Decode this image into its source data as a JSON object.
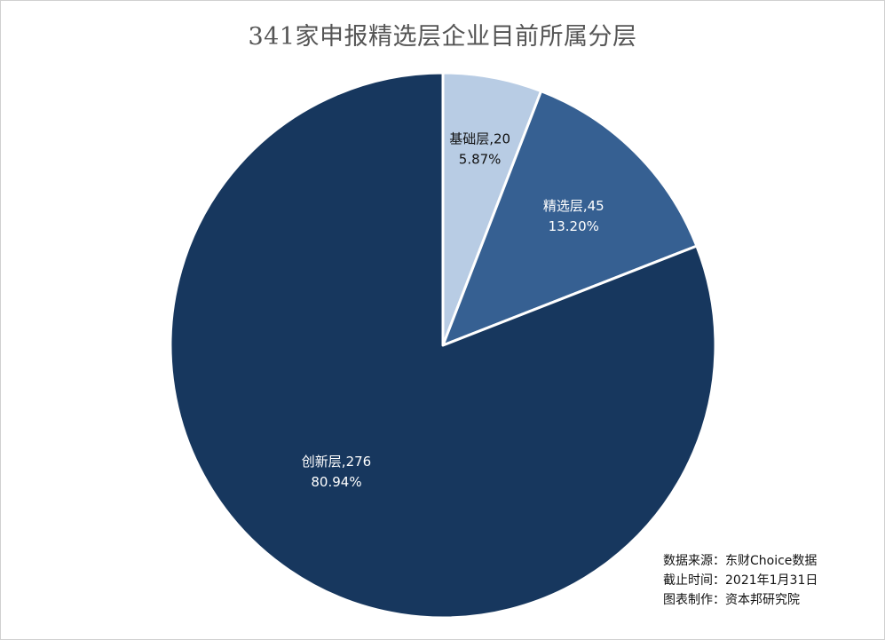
{
  "chart_data": {
    "type": "pie",
    "title": "341家申报精选层企业目前所属分层",
    "categories": [
      "基础层",
      "精选层",
      "创新层"
    ],
    "values": [
      20,
      45,
      276
    ],
    "percentages": [
      "5.87%",
      "13.20%",
      "80.94%"
    ],
    "labels": [
      "基础层,20",
      "精选层,45",
      "创新层,276"
    ],
    "colors": [
      "#b8cce4",
      "#366092",
      "#17375e"
    ],
    "label_colors": [
      "#111111",
      "#ffffff",
      "#ffffff"
    ],
    "start_angle": "12 o'clock",
    "direction": "clockwise"
  },
  "notes": {
    "source": "数据来源：东财Choice数据",
    "cutoff": "截止时间：2021年1月31日",
    "made_by": "图表制作：资本邦研究院"
  }
}
